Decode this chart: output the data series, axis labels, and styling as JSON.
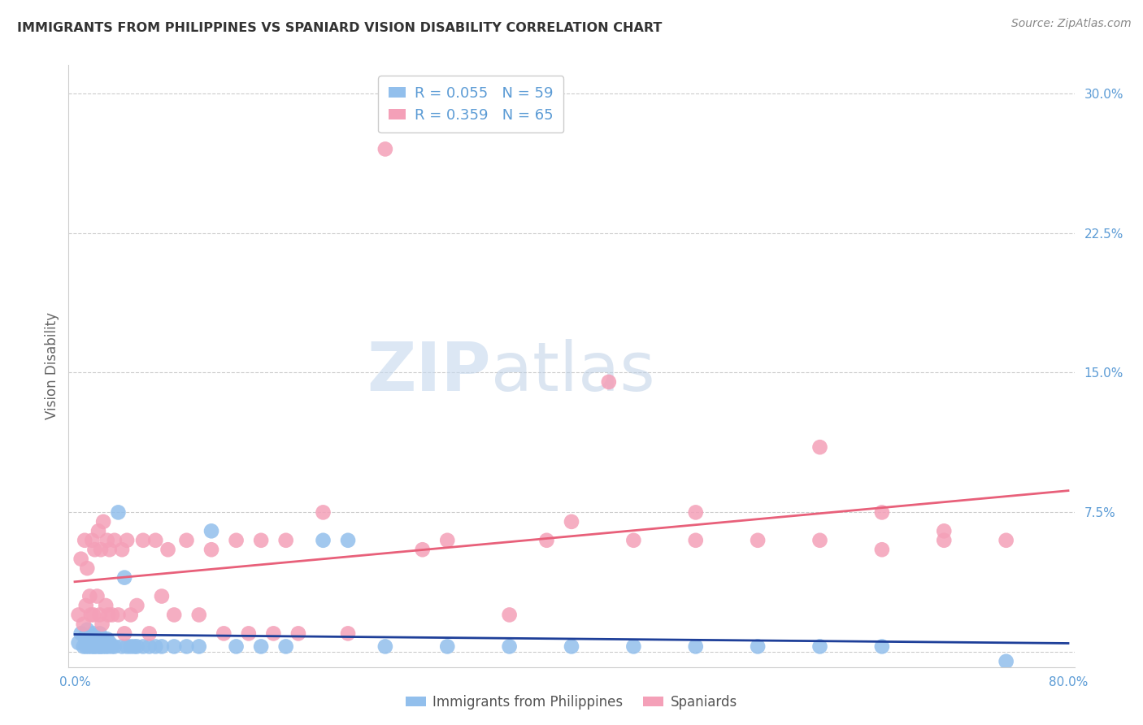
{
  "title": "IMMIGRANTS FROM PHILIPPINES VS SPANIARD VISION DISABILITY CORRELATION CHART",
  "source": "Source: ZipAtlas.com",
  "ylabel": "Vision Disability",
  "series1_label": "Immigrants from Philippines",
  "series2_label": "Spaniards",
  "series1_color": "#92bfec",
  "series2_color": "#f4a0b8",
  "series1_line_color": "#1e3f99",
  "series2_line_color": "#e8607a",
  "series1_R": 0.055,
  "series1_N": 59,
  "series2_R": 0.359,
  "series2_N": 65,
  "xlim": [
    -0.005,
    0.805
  ],
  "ylim": [
    -0.008,
    0.315
  ],
  "xticks": [
    0.0,
    0.2,
    0.4,
    0.6,
    0.8
  ],
  "yticks": [
    0.0,
    0.075,
    0.15,
    0.225,
    0.3
  ],
  "ytick_labels": [
    "",
    "7.5%",
    "15.0%",
    "22.5%",
    "30.0%"
  ],
  "xtick_labels": [
    "0.0%",
    "",
    "",
    "",
    "80.0%"
  ],
  "background_color": "#ffffff",
  "axis_color": "#5b9bd5",
  "watermark_zip": "ZIP",
  "watermark_atlas": "atlas",
  "series1_x": [
    0.003,
    0.005,
    0.007,
    0.008,
    0.009,
    0.01,
    0.01,
    0.011,
    0.012,
    0.013,
    0.014,
    0.015,
    0.015,
    0.016,
    0.017,
    0.018,
    0.019,
    0.02,
    0.02,
    0.021,
    0.022,
    0.023,
    0.024,
    0.025,
    0.026,
    0.027,
    0.028,
    0.03,
    0.032,
    0.035,
    0.038,
    0.04,
    0.042,
    0.045,
    0.048,
    0.05,
    0.055,
    0.06,
    0.065,
    0.07,
    0.08,
    0.09,
    0.1,
    0.11,
    0.13,
    0.15,
    0.17,
    0.2,
    0.22,
    0.25,
    0.3,
    0.35,
    0.4,
    0.45,
    0.5,
    0.55,
    0.6,
    0.65,
    0.75
  ],
  "series1_y": [
    0.005,
    0.01,
    0.003,
    0.008,
    0.003,
    0.005,
    0.012,
    0.003,
    0.007,
    0.003,
    0.008,
    0.003,
    0.01,
    0.003,
    0.006,
    0.003,
    0.005,
    0.003,
    0.01,
    0.003,
    0.007,
    0.003,
    0.005,
    0.003,
    0.007,
    0.003,
    0.005,
    0.003,
    0.003,
    0.075,
    0.003,
    0.04,
    0.003,
    0.003,
    0.003,
    0.003,
    0.003,
    0.003,
    0.003,
    0.003,
    0.003,
    0.003,
    0.003,
    0.065,
    0.003,
    0.003,
    0.003,
    0.06,
    0.06,
    0.003,
    0.003,
    0.003,
    0.003,
    0.003,
    0.003,
    0.003,
    0.003,
    0.003,
    -0.005
  ],
  "series2_x": [
    0.003,
    0.005,
    0.007,
    0.008,
    0.009,
    0.01,
    0.012,
    0.013,
    0.014,
    0.015,
    0.016,
    0.018,
    0.019,
    0.02,
    0.021,
    0.022,
    0.023,
    0.025,
    0.026,
    0.027,
    0.028,
    0.03,
    0.032,
    0.035,
    0.038,
    0.04,
    0.042,
    0.045,
    0.05,
    0.055,
    0.06,
    0.065,
    0.07,
    0.075,
    0.08,
    0.09,
    0.1,
    0.11,
    0.12,
    0.13,
    0.14,
    0.15,
    0.16,
    0.17,
    0.18,
    0.2,
    0.22,
    0.25,
    0.28,
    0.3,
    0.35,
    0.38,
    0.4,
    0.43,
    0.45,
    0.5,
    0.55,
    0.6,
    0.65,
    0.7,
    0.75,
    0.5,
    0.6,
    0.65,
    0.7
  ],
  "series2_y": [
    0.02,
    0.05,
    0.015,
    0.06,
    0.025,
    0.045,
    0.03,
    0.02,
    0.06,
    0.02,
    0.055,
    0.03,
    0.065,
    0.02,
    0.055,
    0.015,
    0.07,
    0.025,
    0.06,
    0.02,
    0.055,
    0.02,
    0.06,
    0.02,
    0.055,
    0.01,
    0.06,
    0.02,
    0.025,
    0.06,
    0.01,
    0.06,
    0.03,
    0.055,
    0.02,
    0.06,
    0.02,
    0.055,
    0.01,
    0.06,
    0.01,
    0.06,
    0.01,
    0.06,
    0.01,
    0.075,
    0.01,
    0.27,
    0.055,
    0.06,
    0.02,
    0.06,
    0.07,
    0.145,
    0.06,
    0.075,
    0.06,
    0.11,
    0.055,
    0.065,
    0.06,
    0.06,
    0.06,
    0.075,
    0.06
  ]
}
